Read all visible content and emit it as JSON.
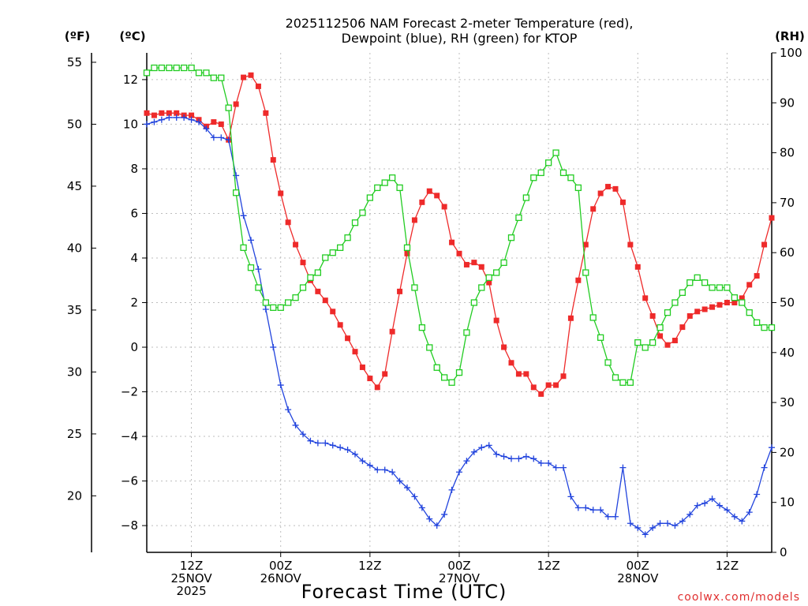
{
  "chart_data": {
    "type": "line",
    "title_line1": "2025112506 NAM Forecast 2-meter Temperature (red),",
    "title_line2": "Dewpoint (blue), RH (green) for KTOP",
    "xlabel": "Forecast Time (UTC)",
    "unit_f": "(ºF)",
    "unit_c": "(ºC)",
    "unit_rh": "(RH)",
    "credit": "coolwx.com/models",
    "x_range_hours": [
      6,
      90
    ],
    "c_axis": {
      "min": -9.2,
      "max": 13.2,
      "ticks": [
        12,
        10,
        8,
        6,
        4,
        2,
        0,
        -2,
        -4,
        -6,
        -8
      ]
    },
    "f_axis": {
      "ticks": [
        55,
        50,
        45,
        40,
        35,
        30,
        25,
        20
      ]
    },
    "rh_axis": {
      "min": 0,
      "max": 100,
      "ticks": [
        100,
        90,
        80,
        70,
        60,
        50,
        40,
        30,
        20,
        10,
        0
      ]
    },
    "x_ticks": [
      {
        "hour": 12,
        "lines": [
          "12Z",
          "25NOV",
          "2025"
        ]
      },
      {
        "hour": 24,
        "lines": [
          "00Z",
          "26NOV"
        ]
      },
      {
        "hour": 36,
        "lines": [
          "12Z"
        ]
      },
      {
        "hour": 48,
        "lines": [
          "00Z",
          "27NOV"
        ]
      },
      {
        "hour": 60,
        "lines": [
          "12Z"
        ]
      },
      {
        "hour": 72,
        "lines": [
          "00Z",
          "28NOV"
        ]
      },
      {
        "hour": 84,
        "lines": [
          "12Z"
        ]
      }
    ],
    "series": [
      {
        "name": "Temperature",
        "color": "#ee2a2a",
        "marker": "filled-square",
        "unit": "C",
        "values": [
          [
            6,
            10.5
          ],
          [
            7,
            10.4
          ],
          [
            8,
            10.5
          ],
          [
            9,
            10.5
          ],
          [
            10,
            10.5
          ],
          [
            11,
            10.4
          ],
          [
            12,
            10.4
          ],
          [
            13,
            10.2
          ],
          [
            14,
            9.9
          ],
          [
            15,
            10.1
          ],
          [
            16,
            10.0
          ],
          [
            17,
            9.3
          ],
          [
            18,
            10.9
          ],
          [
            19,
            12.1
          ],
          [
            20,
            12.2
          ],
          [
            21,
            11.7
          ],
          [
            22,
            10.5
          ],
          [
            23,
            8.4
          ],
          [
            24,
            6.9
          ],
          [
            25,
            5.6
          ],
          [
            26,
            4.6
          ],
          [
            27,
            3.8
          ],
          [
            28,
            3.0
          ],
          [
            29,
            2.5
          ],
          [
            30,
            2.1
          ],
          [
            31,
            1.6
          ],
          [
            32,
            1.0
          ],
          [
            33,
            0.4
          ],
          [
            34,
            -0.2
          ],
          [
            35,
            -0.9
          ],
          [
            36,
            -1.4
          ],
          [
            37,
            -1.8
          ],
          [
            38,
            -1.2
          ],
          [
            39,
            0.7
          ],
          [
            40,
            2.5
          ],
          [
            41,
            4.2
          ],
          [
            42,
            5.7
          ],
          [
            43,
            6.5
          ],
          [
            44,
            7.0
          ],
          [
            45,
            6.8
          ],
          [
            46,
            6.3
          ],
          [
            47,
            4.7
          ],
          [
            48,
            4.2
          ],
          [
            49,
            3.7
          ],
          [
            50,
            3.8
          ],
          [
            51,
            3.6
          ],
          [
            52,
            2.9
          ],
          [
            53,
            1.2
          ],
          [
            54,
            0.0
          ],
          [
            55,
            -0.7
          ],
          [
            56,
            -1.2
          ],
          [
            57,
            -1.2
          ],
          [
            58,
            -1.8
          ],
          [
            59,
            -2.1
          ],
          [
            60,
            -1.7
          ],
          [
            61,
            -1.7
          ],
          [
            62,
            -1.3
          ],
          [
            63,
            1.3
          ],
          [
            64,
            3.0
          ],
          [
            65,
            4.6
          ],
          [
            66,
            6.2
          ],
          [
            67,
            6.9
          ],
          [
            68,
            7.2
          ],
          [
            69,
            7.1
          ],
          [
            70,
            6.5
          ],
          [
            71,
            4.6
          ],
          [
            72,
            3.6
          ],
          [
            73,
            2.2
          ],
          [
            74,
            1.4
          ],
          [
            75,
            0.5
          ],
          [
            76,
            0.1
          ],
          [
            77,
            0.3
          ],
          [
            78,
            0.9
          ],
          [
            79,
            1.4
          ],
          [
            80,
            1.6
          ],
          [
            81,
            1.7
          ],
          [
            82,
            1.8
          ],
          [
            83,
            1.9
          ],
          [
            84,
            2.0
          ],
          [
            85,
            2.0
          ],
          [
            86,
            2.2
          ],
          [
            87,
            2.8
          ],
          [
            88,
            3.2
          ],
          [
            89,
            4.6
          ],
          [
            90,
            5.8
          ]
        ]
      },
      {
        "name": "Dewpoint",
        "color": "#2244dd",
        "marker": "plus",
        "unit": "C",
        "values": [
          [
            6,
            10.0
          ],
          [
            7,
            10.1
          ],
          [
            8,
            10.2
          ],
          [
            9,
            10.3
          ],
          [
            10,
            10.3
          ],
          [
            11,
            10.3
          ],
          [
            12,
            10.2
          ],
          [
            13,
            10.1
          ],
          [
            14,
            9.8
          ],
          [
            15,
            9.4
          ],
          [
            16,
            9.4
          ],
          [
            17,
            9.3
          ],
          [
            18,
            7.7
          ],
          [
            19,
            5.9
          ],
          [
            20,
            4.8
          ],
          [
            21,
            3.5
          ],
          [
            22,
            1.7
          ],
          [
            23,
            0.0
          ],
          [
            24,
            -1.7
          ],
          [
            25,
            -2.8
          ],
          [
            26,
            -3.5
          ],
          [
            27,
            -3.9
          ],
          [
            28,
            -4.2
          ],
          [
            29,
            -4.3
          ],
          [
            30,
            -4.3
          ],
          [
            31,
            -4.4
          ],
          [
            32,
            -4.5
          ],
          [
            33,
            -4.6
          ],
          [
            34,
            -4.8
          ],
          [
            35,
            -5.1
          ],
          [
            36,
            -5.3
          ],
          [
            37,
            -5.5
          ],
          [
            38,
            -5.5
          ],
          [
            39,
            -5.6
          ],
          [
            40,
            -6.0
          ],
          [
            41,
            -6.3
          ],
          [
            42,
            -6.7
          ],
          [
            43,
            -7.2
          ],
          [
            44,
            -7.7
          ],
          [
            45,
            -8.0
          ],
          [
            46,
            -7.5
          ],
          [
            47,
            -6.4
          ],
          [
            48,
            -5.6
          ],
          [
            49,
            -5.1
          ],
          [
            50,
            -4.7
          ],
          [
            51,
            -4.5
          ],
          [
            52,
            -4.4
          ],
          [
            53,
            -4.8
          ],
          [
            54,
            -4.9
          ],
          [
            55,
            -5.0
          ],
          [
            56,
            -5.0
          ],
          [
            57,
            -4.9
          ],
          [
            58,
            -5.0
          ],
          [
            59,
            -5.2
          ],
          [
            60,
            -5.2
          ],
          [
            61,
            -5.4
          ],
          [
            62,
            -5.4
          ],
          [
            63,
            -6.7
          ],
          [
            64,
            -7.2
          ],
          [
            65,
            -7.2
          ],
          [
            66,
            -7.3
          ],
          [
            67,
            -7.3
          ],
          [
            68,
            -7.6
          ],
          [
            69,
            -7.6
          ],
          [
            70,
            -5.4
          ],
          [
            71,
            -7.9
          ],
          [
            72,
            -8.1
          ],
          [
            73,
            -8.4
          ],
          [
            74,
            -8.1
          ],
          [
            75,
            -7.9
          ],
          [
            76,
            -7.9
          ],
          [
            77,
            -8.0
          ],
          [
            78,
            -7.8
          ],
          [
            79,
            -7.5
          ],
          [
            80,
            -7.1
          ],
          [
            81,
            -7.0
          ],
          [
            82,
            -6.8
          ],
          [
            83,
            -7.1
          ],
          [
            84,
            -7.3
          ],
          [
            85,
            -7.6
          ],
          [
            86,
            -7.8
          ],
          [
            87,
            -7.4
          ],
          [
            88,
            -6.6
          ],
          [
            89,
            -5.4
          ],
          [
            90,
            -4.5
          ]
        ]
      },
      {
        "name": "RH",
        "color": "#22cc22",
        "marker": "open-square",
        "unit": "%",
        "values": [
          [
            6,
            96
          ],
          [
            7,
            97
          ],
          [
            8,
            97
          ],
          [
            9,
            97
          ],
          [
            10,
            97
          ],
          [
            11,
            97
          ],
          [
            12,
            97
          ],
          [
            13,
            96
          ],
          [
            14,
            96
          ],
          [
            15,
            95
          ],
          [
            16,
            95
          ],
          [
            17,
            89
          ],
          [
            18,
            72
          ],
          [
            19,
            61
          ],
          [
            20,
            57
          ],
          [
            21,
            53
          ],
          [
            22,
            50
          ],
          [
            23,
            49
          ],
          [
            24,
            49
          ],
          [
            25,
            50
          ],
          [
            26,
            51
          ],
          [
            27,
            53
          ],
          [
            28,
            55
          ],
          [
            29,
            56
          ],
          [
            30,
            59
          ],
          [
            31,
            60
          ],
          [
            32,
            61
          ],
          [
            33,
            63
          ],
          [
            34,
            66
          ],
          [
            35,
            68
          ],
          [
            36,
            71
          ],
          [
            37,
            73
          ],
          [
            38,
            74
          ],
          [
            39,
            75
          ],
          [
            40,
            73
          ],
          [
            41,
            61
          ],
          [
            42,
            53
          ],
          [
            43,
            45
          ],
          [
            44,
            41
          ],
          [
            45,
            37
          ],
          [
            46,
            35
          ],
          [
            47,
            34
          ],
          [
            48,
            36
          ],
          [
            49,
            44
          ],
          [
            50,
            50
          ],
          [
            51,
            53
          ],
          [
            52,
            55
          ],
          [
            53,
            56
          ],
          [
            54,
            58
          ],
          [
            55,
            63
          ],
          [
            56,
            67
          ],
          [
            57,
            71
          ],
          [
            58,
            75
          ],
          [
            59,
            76
          ],
          [
            60,
            78
          ],
          [
            61,
            80
          ],
          [
            62,
            76
          ],
          [
            63,
            75
          ],
          [
            64,
            73
          ],
          [
            65,
            56
          ],
          [
            66,
            47
          ],
          [
            67,
            43
          ],
          [
            68,
            38
          ],
          [
            69,
            35
          ],
          [
            70,
            34
          ],
          [
            71,
            34
          ],
          [
            72,
            42
          ],
          [
            73,
            41
          ],
          [
            74,
            42
          ],
          [
            75,
            45
          ],
          [
            76,
            48
          ],
          [
            77,
            50
          ],
          [
            78,
            52
          ],
          [
            79,
            54
          ],
          [
            80,
            55
          ],
          [
            81,
            54
          ],
          [
            82,
            53
          ],
          [
            83,
            53
          ],
          [
            84,
            53
          ],
          [
            85,
            51
          ],
          [
            86,
            50
          ],
          [
            87,
            48
          ],
          [
            88,
            46
          ],
          [
            89,
            45
          ],
          [
            90,
            45
          ]
        ]
      }
    ]
  }
}
